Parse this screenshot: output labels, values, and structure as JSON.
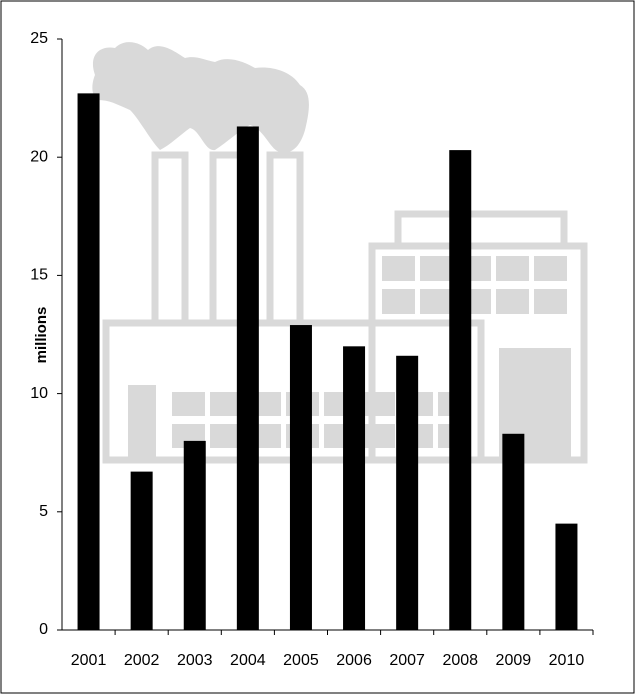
{
  "chart_data": {
    "type": "bar",
    "y_label": "millions",
    "categories": [
      "2001",
      "2002",
      "2003",
      "2004",
      "2005",
      "2006",
      "2007",
      "2008",
      "2009",
      "2010"
    ],
    "values": [
      22.7,
      6.7,
      8.0,
      21.3,
      12.9,
      12.0,
      11.6,
      20.3,
      8.3,
      4.5
    ],
    "color": "#000000",
    "ylim": [
      0,
      25
    ],
    "yticks": [
      0,
      5,
      10,
      15,
      20,
      25
    ],
    "grid": false
  }
}
